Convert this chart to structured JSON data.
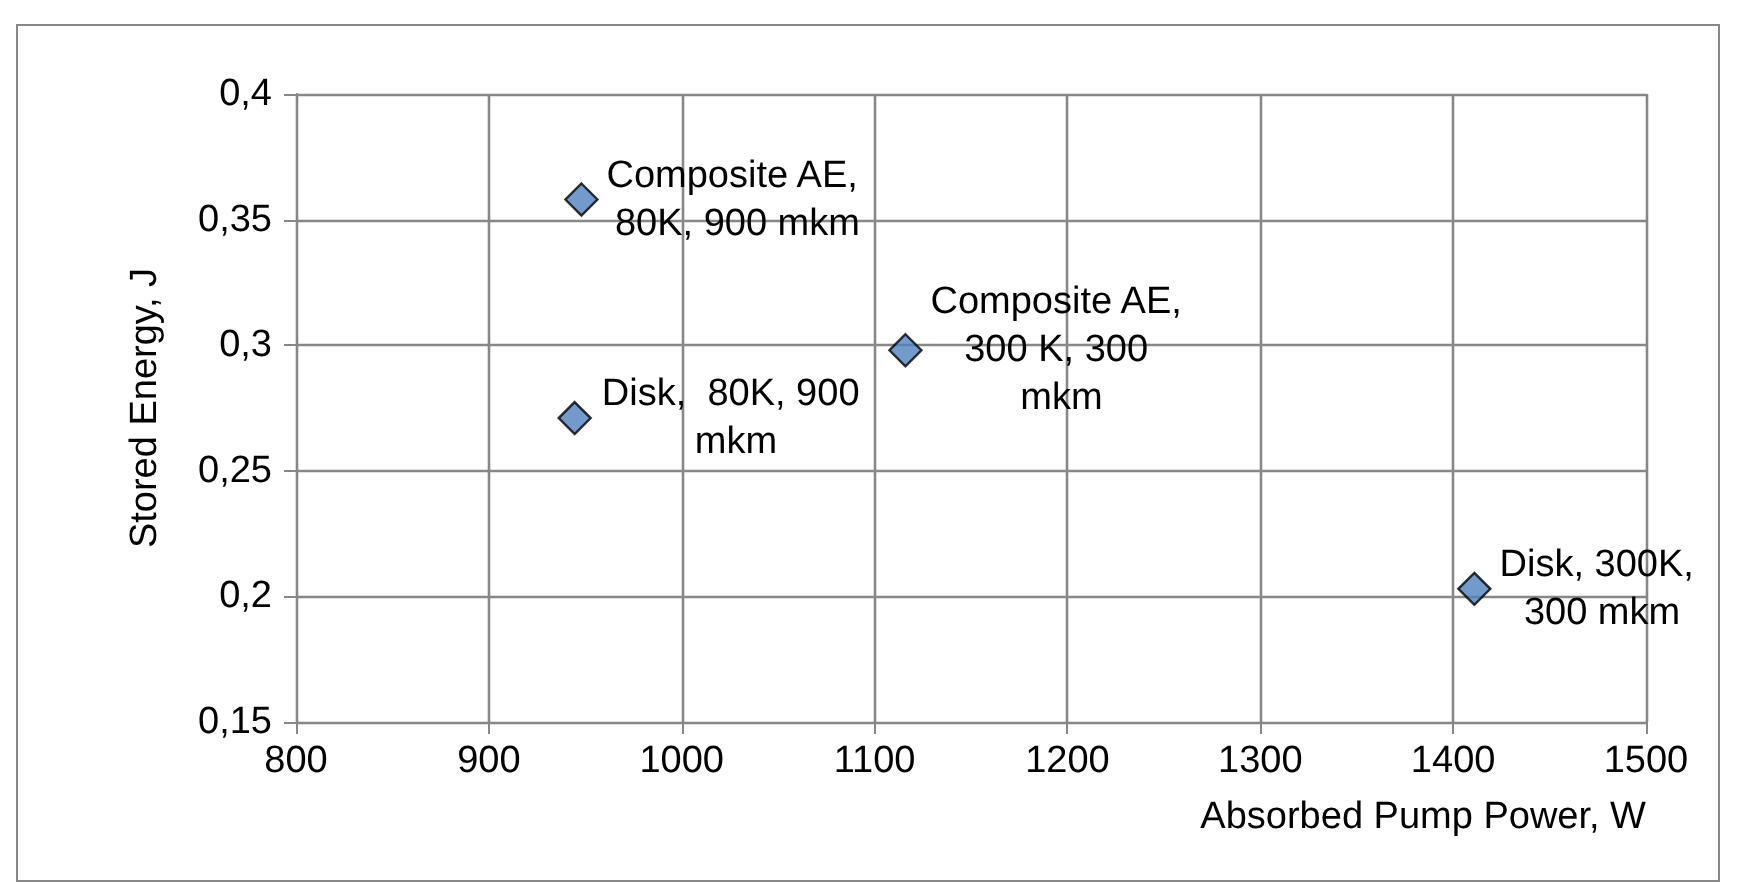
{
  "chart_data": {
    "type": "scatter",
    "xlabel": "Absorbed Pump Power, W",
    "ylabel": "Stored Energy, J",
    "x": [
      948,
      944.5,
      1116,
      1411
    ],
    "values": [
      0.358,
      0.271,
      0.298,
      0.203
    ],
    "color": "#4f81bd",
    "marker": "diamond",
    "grid": true,
    "xlim": [
      800,
      1500
    ],
    "xticks": [
      800,
      900,
      1000,
      1100,
      1200,
      1300,
      1400,
      1500
    ],
    "ylim": [
      0.15,
      0.4
    ],
    "yticks": [
      {
        "value": 0.15,
        "label": "0,15"
      },
      {
        "value": 0.2,
        "label": "0,2"
      },
      {
        "value": 0.25,
        "label": "0,25"
      },
      {
        "value": 0.3,
        "label": "0,3"
      },
      {
        "value": 0.35,
        "label": "0,35"
      },
      {
        "value": 0.4,
        "label": "0,4"
      }
    ],
    "annotations": [
      {
        "text": "Composite AE, 80K, 900 mkm",
        "x": 948,
        "y": 0.358
      },
      {
        "text": "Disk,  80K, 900 mkm",
        "x": 944.5,
        "y": 0.271
      },
      {
        "text": "Composite AE, 300 K, 300 mkm",
        "x": 1116,
        "y": 0.298
      },
      {
        "text": "Disk, 300K, 300 mkm",
        "x": 1411,
        "y": 0.203
      }
    ]
  }
}
